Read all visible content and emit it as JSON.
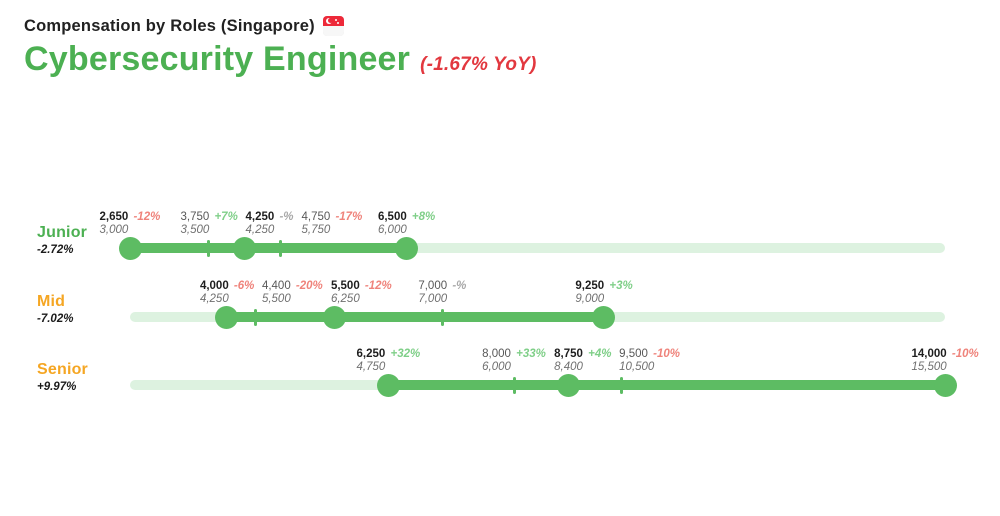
{
  "header": {
    "eyebrow": "Compensation by Roles (Singapore)",
    "flag_icon": "singapore-flag",
    "title": "Cybersecurity Engineer",
    "yoy": "(-1.67% YoY)"
  },
  "colors": {
    "green": "#4cb052",
    "bar-green": "#5dbc63",
    "track-green": "#ddf2e0",
    "orange": "#f5a623",
    "red": "#e2383f",
    "pct-red": "#ef837b",
    "pct-green": "#7fcf88",
    "pct-gray": "#a8a8a8"
  },
  "chart_data": {
    "type": "range-dot",
    "title": "Compensation by Roles (Singapore) — Cybersecurity Engineer (-1.67% YoY)",
    "axis": {
      "min": 2650,
      "max": 14000,
      "gridlines": false,
      "legend": "none"
    },
    "rows": [
      {
        "label": "Junior",
        "label_color": "green",
        "yoy": "-2.72%",
        "range": {
          "start": 2650,
          "end": 6500
        },
        "markers": [
          {
            "value": 2650,
            "label": "2,650",
            "pct": "-12%",
            "pct_color": "red",
            "previous": "3,000",
            "style": "dot"
          },
          {
            "value": 3750,
            "label": "3,750",
            "pct": "+7%",
            "pct_color": "green",
            "previous": "3,500",
            "style": "tick"
          },
          {
            "value": 4250,
            "label": "4,250",
            "pct": "-%",
            "pct_color": "gray",
            "previous": "4,250",
            "style": "dot"
          },
          {
            "value": 4750,
            "label": "4,750",
            "pct": "-17%",
            "pct_color": "red",
            "previous": "5,750",
            "style": "tick"
          },
          {
            "value": 6500,
            "label": "6,500",
            "pct": "+8%",
            "pct_color": "green",
            "previous": "6,000",
            "style": "dot"
          }
        ]
      },
      {
        "label": "Mid",
        "label_color": "orange",
        "yoy": "-7.02%",
        "range": {
          "start": 4000,
          "end": 9250
        },
        "markers": [
          {
            "value": 4000,
            "label": "4,000",
            "pct": "-6%",
            "pct_color": "red",
            "previous": "4,250",
            "style": "dot"
          },
          {
            "value": 4400,
            "label": "4,400",
            "pct": "-20%",
            "pct_color": "red",
            "previous": "5,500",
            "style": "tick"
          },
          {
            "value": 5500,
            "label": "5,500",
            "pct": "-12%",
            "pct_color": "red",
            "previous": "6,250",
            "style": "dot"
          },
          {
            "value": 7000,
            "label": "7,000",
            "pct": "-%",
            "pct_color": "gray",
            "previous": "7,000",
            "style": "tick"
          },
          {
            "value": 9250,
            "label": "9,250",
            "pct": "+3%",
            "pct_color": "green",
            "previous": "9,000",
            "style": "dot"
          }
        ]
      },
      {
        "label": "Senior",
        "label_color": "orange",
        "yoy": "+9.97%",
        "range": {
          "start": 6250,
          "end": 14000
        },
        "markers": [
          {
            "value": 6250,
            "label": "6,250",
            "pct": "+32%",
            "pct_color": "green",
            "previous": "4,750",
            "style": "dot"
          },
          {
            "value": 8000,
            "label": "8,000",
            "pct": "+33%",
            "pct_color": "green",
            "previous": "6,000",
            "style": "tick"
          },
          {
            "value": 8750,
            "label": "8,750",
            "pct": "+4%",
            "pct_color": "green",
            "previous": "8,400",
            "style": "dot"
          },
          {
            "value": 9500,
            "label": "9,500",
            "pct": "-10%",
            "pct_color": "red",
            "previous": "10,500",
            "style": "tick"
          },
          {
            "value": 14000,
            "label": "14,000",
            "pct": "-10%",
            "pct_color": "red",
            "previous": "15,500",
            "style": "dot"
          }
        ]
      }
    ]
  }
}
